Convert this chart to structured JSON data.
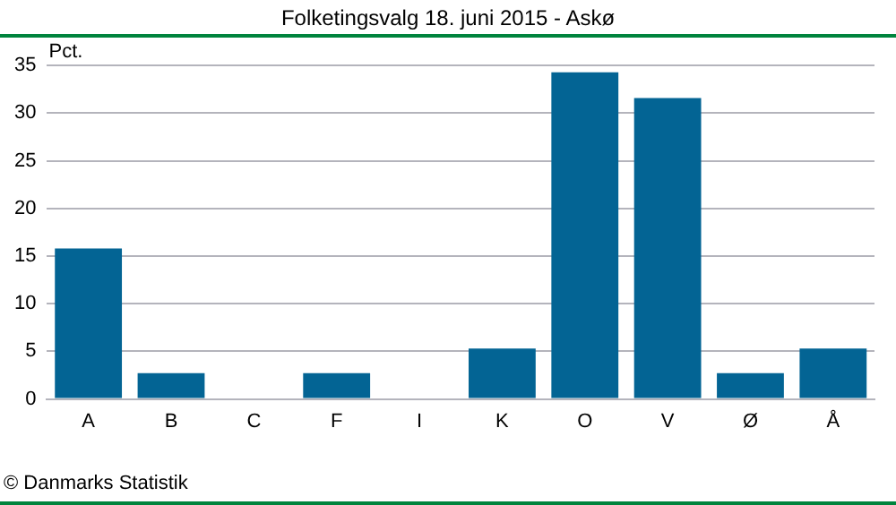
{
  "chart_data": {
    "type": "bar",
    "title": "Folketingsvalg 18. juni 2015 - Askø",
    "ylabel": "Pct.",
    "categories": [
      "A",
      "B",
      "C",
      "F",
      "I",
      "K",
      "O",
      "V",
      "Ø",
      "Å"
    ],
    "values": [
      15.8,
      2.7,
      0,
      2.7,
      0,
      5.3,
      34.3,
      31.6,
      2.7,
      5.3
    ],
    "color": "#036494",
    "ylim": [
      0,
      35
    ],
    "yticks": [
      0,
      5,
      10,
      15,
      20,
      25,
      30,
      35
    ],
    "grid": "y",
    "legend": false,
    "annotations": [
      "© Danmarks Statistik"
    ]
  }
}
